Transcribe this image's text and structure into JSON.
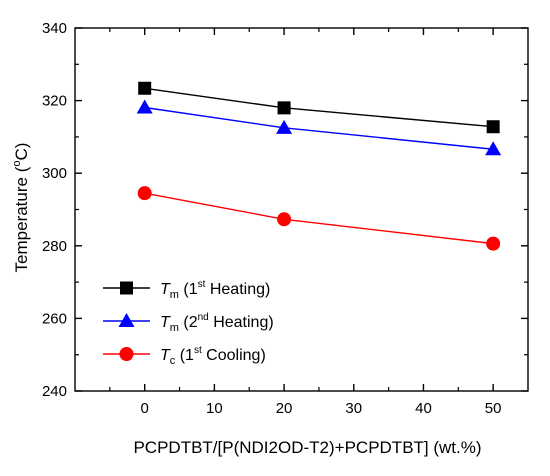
{
  "chart_data": {
    "type": "line",
    "x": [
      0,
      20,
      50
    ],
    "xlabel": "PCPDTBT/[P(NDI2OD-T2)+PCPDTBT] (wt.%)",
    "ylabel": "Temperature (°C)",
    "ylabel_parts": {
      "main": "Temperature (",
      "super": "o",
      "tail": "C)"
    },
    "xlim": [
      -10,
      55
    ],
    "ylim": [
      240,
      340
    ],
    "xticks": [
      0,
      10,
      20,
      30,
      40,
      50
    ],
    "yticks": [
      240,
      260,
      280,
      300,
      320,
      340
    ],
    "grid": false,
    "legend_position": "bottom-left",
    "series": [
      {
        "name": "Tm (1st Heating)",
        "legend": {
          "symbol": "T",
          "sub": "m",
          "pre": " (1",
          "sup": "st",
          "post": " Heating)"
        },
        "marker": "square",
        "color": "#000000",
        "values": [
          323.4,
          318.0,
          312.8
        ]
      },
      {
        "name": "Tm (2nd Heating)",
        "legend": {
          "symbol": "T",
          "sub": "m",
          "pre": " (2",
          "sup": "nd",
          "post": " Heating)"
        },
        "marker": "triangle",
        "color": "#0000ff",
        "values": [
          318.1,
          312.5,
          306.6
        ]
      },
      {
        "name": "Tc (1st Cooling)",
        "legend": {
          "symbol": "T",
          "sub": "c",
          "pre": " (1",
          "sup": "st",
          "post": " Cooling)"
        },
        "marker": "circle",
        "color": "#ff0000",
        "values": [
          294.5,
          287.3,
          280.6
        ]
      }
    ]
  }
}
